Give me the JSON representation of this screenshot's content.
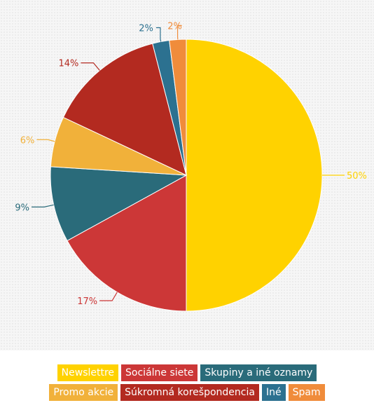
{
  "chart_data": {
    "type": "pie",
    "title": "",
    "legend_position": "bottom",
    "slices": [
      {
        "name": "Newslettre",
        "value": 50,
        "label": "50%",
        "color": "#ffd200"
      },
      {
        "name": "Sociálne siete",
        "value": 17,
        "label": "17%",
        "color": "#cc3737"
      },
      {
        "name": "Skupiny a iné oznamy",
        "value": 9,
        "label": "9%",
        "color": "#2a6b7a"
      },
      {
        "name": "Promo akcie",
        "value": 6,
        "label": "6%",
        "color": "#f1b13a"
      },
      {
        "name": "Súkromná korešpondencia",
        "value": 14,
        "label": "14%",
        "color": "#b32a20"
      },
      {
        "name": "Iné",
        "value": 2,
        "label": "2%",
        "color": "#2c7190"
      },
      {
        "name": "Spam",
        "value": 2,
        "label": "2%",
        "color": "#f08c3b"
      }
    ]
  },
  "legend": {
    "rows": [
      [
        0,
        1,
        2
      ],
      [
        3,
        4,
        5,
        6
      ]
    ]
  }
}
